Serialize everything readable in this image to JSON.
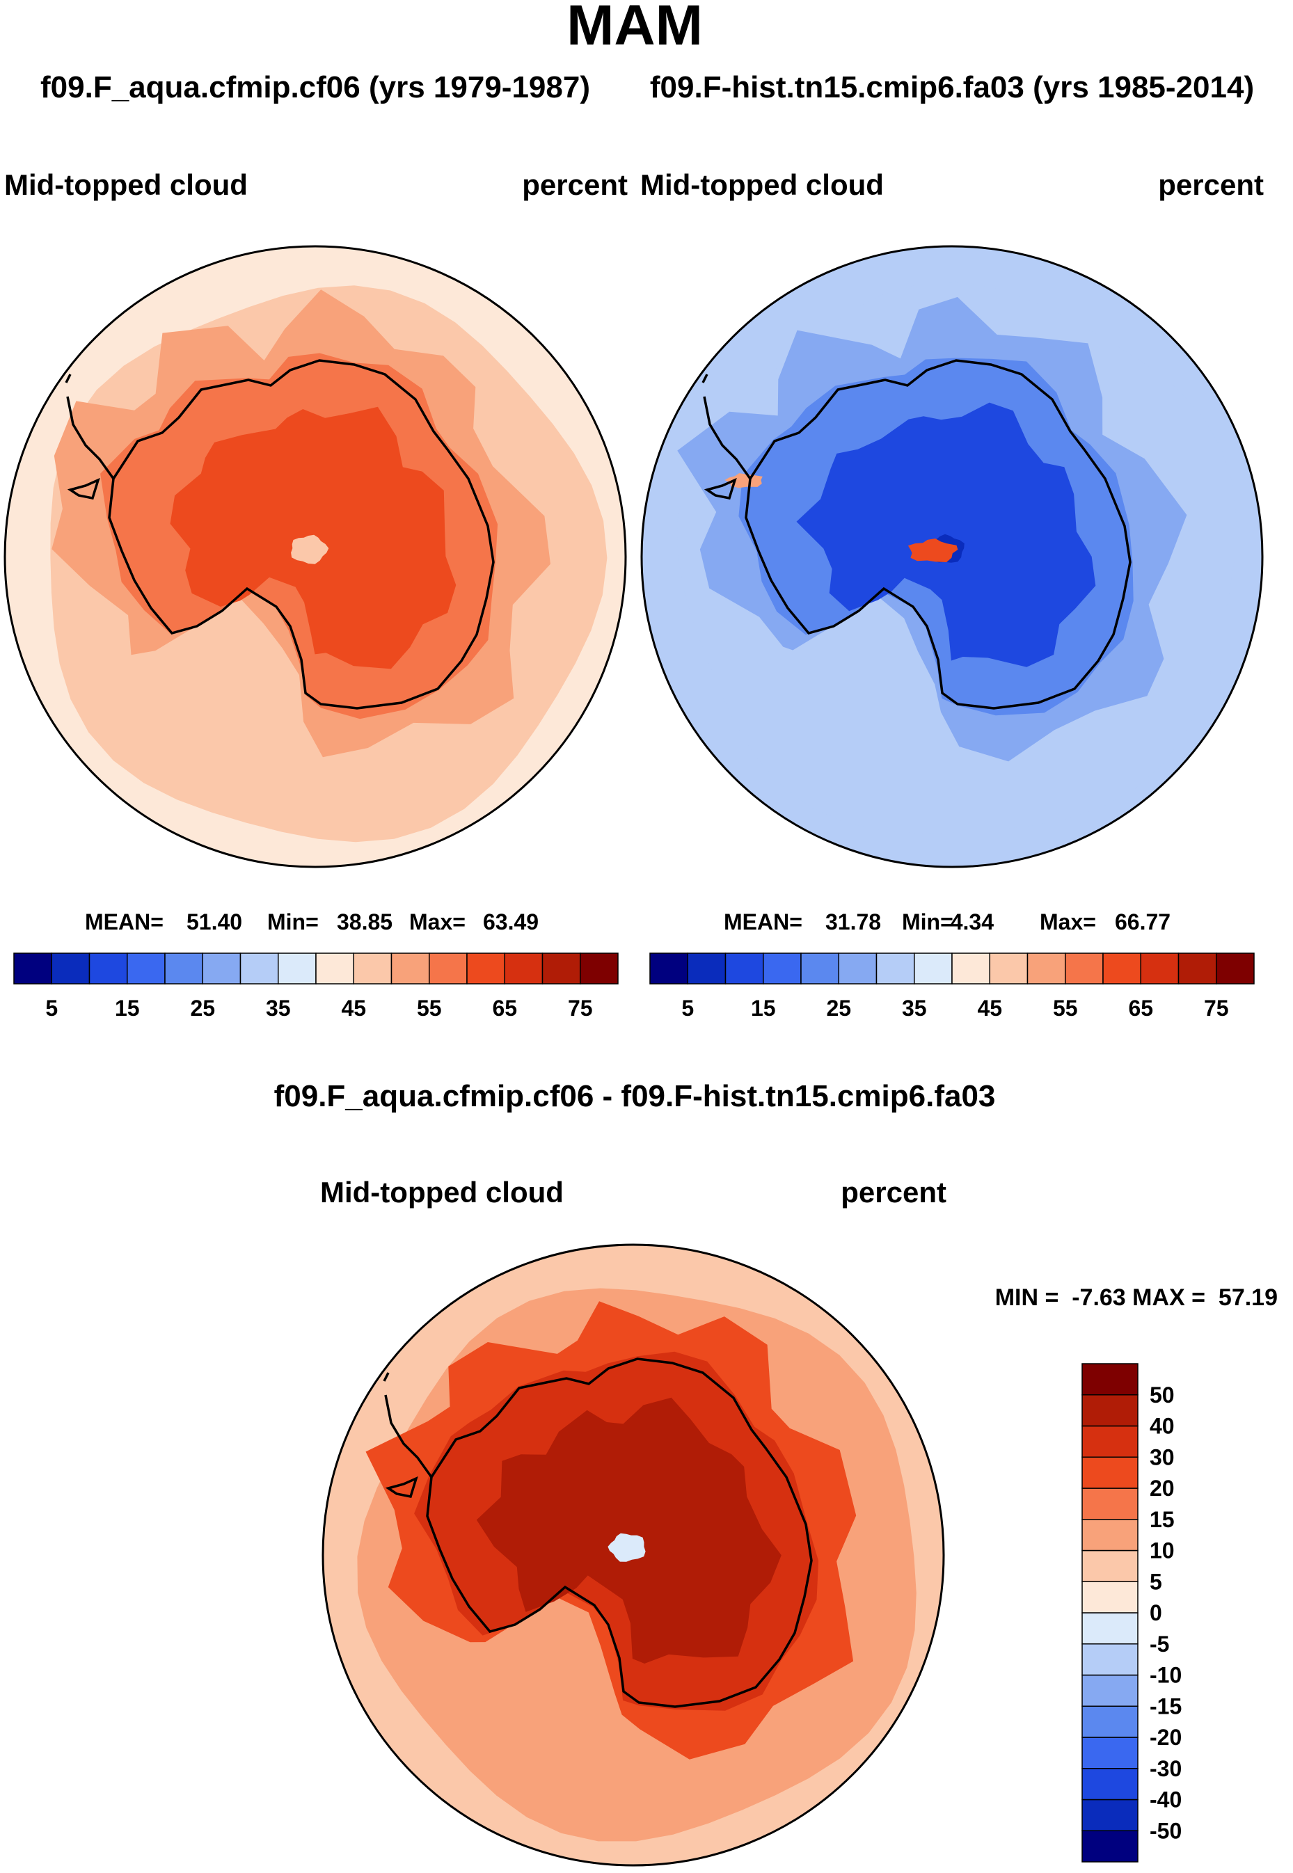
{
  "page": {
    "season": "MAM"
  },
  "chart_data": [
    {
      "type": "heatmap",
      "projection": "south-polar-stereographic",
      "title": "f09.F_aqua.cfmip.cf06 (yrs 1979-1987)",
      "left_label": "Mid-topped cloud",
      "right_label": "percent",
      "stats": {
        "mean_label": "MEAN=",
        "mean": "51.40",
        "min_label": "Min=",
        "min": "38.85",
        "max_label": "Max=",
        "max": "63.49"
      },
      "field": {
        "ocean_far": 42,
        "ocean_mid": 47,
        "ocean_near": 52,
        "coast": 58,
        "interior": 62,
        "pole": 47
      },
      "colorbar": {
        "orientation": "horizontal",
        "levels": [
          5,
          10,
          15,
          20,
          25,
          30,
          35,
          40,
          45,
          50,
          55,
          60,
          65,
          70,
          75
        ],
        "tick_labels": [
          "5",
          "15",
          "25",
          "35",
          "45",
          "55",
          "65",
          "75"
        ],
        "colors": [
          "#00007f",
          "#0a2cbc",
          "#1e48e0",
          "#3a68f0",
          "#5b88ef",
          "#86a9f2",
          "#b5cdf7",
          "#dbeafa",
          "#fde8d8",
          "#fbc8aa",
          "#f8a27a",
          "#f5754a",
          "#ed4a1e",
          "#d63010",
          "#b01c06",
          "#7e0000"
        ]
      }
    },
    {
      "type": "heatmap",
      "projection": "south-polar-stereographic",
      "title": "f09.F-hist.tn15.cmip6.fa03 (yrs 1985-2014)",
      "left_label": "Mid-topped cloud",
      "right_label": "percent",
      "stats": {
        "mean_label": "MEAN=",
        "mean": "31.78",
        "min_label": "Min=",
        "min": "4.34",
        "max_label": "Max=",
        "max": "66.77"
      },
      "field": {
        "ocean_far": 34,
        "ocean_mid": 30,
        "ocean_near": 27,
        "coast": 22,
        "interior": 14,
        "pole": 8,
        "hotspot": 62
      },
      "colorbar": {
        "orientation": "horizontal",
        "levels": [
          5,
          10,
          15,
          20,
          25,
          30,
          35,
          40,
          45,
          50,
          55,
          60,
          65,
          70,
          75
        ],
        "tick_labels": [
          "5",
          "15",
          "25",
          "35",
          "45",
          "55",
          "65",
          "75"
        ],
        "colors": [
          "#00007f",
          "#0a2cbc",
          "#1e48e0",
          "#3a68f0",
          "#5b88ef",
          "#86a9f2",
          "#b5cdf7",
          "#dbeafa",
          "#fde8d8",
          "#fbc8aa",
          "#f8a27a",
          "#f5754a",
          "#ed4a1e",
          "#d63010",
          "#b01c06",
          "#7e0000"
        ]
      }
    },
    {
      "type": "heatmap",
      "projection": "south-polar-stereographic",
      "title": "f09.F_aqua.cfmip.cf06 - f09.F-hist.tn15.cmip6.fa03",
      "left_label": "Mid-topped cloud",
      "right_label": "percent",
      "stats": {
        "text": "MIN =  -7.63 MAX =  57.19"
      },
      "field": {
        "ocean_far": 8,
        "ocean_mid": 14,
        "ocean_near": 22,
        "coast": 30,
        "interior": 41,
        "pole": -4
      },
      "colorbar": {
        "orientation": "vertical",
        "levels": [
          -50,
          -40,
          -30,
          -20,
          -15,
          -10,
          -5,
          0,
          5,
          10,
          15,
          20,
          30,
          40,
          50
        ],
        "tick_labels": [
          "-50",
          "-40",
          "-30",
          "-20",
          "-15",
          "-10",
          "-5",
          "0",
          "5",
          "10",
          "15",
          "20",
          "30",
          "40",
          "50"
        ],
        "colors": [
          "#00007f",
          "#0a2cbc",
          "#1e48e0",
          "#3a68f0",
          "#5b88ef",
          "#86a9f2",
          "#b5cdf7",
          "#dbeafa",
          "#fde8d8",
          "#fbc8aa",
          "#f8a27a",
          "#f5754a",
          "#ed4a1e",
          "#d63010",
          "#b01c06",
          "#7e0000"
        ]
      }
    }
  ]
}
